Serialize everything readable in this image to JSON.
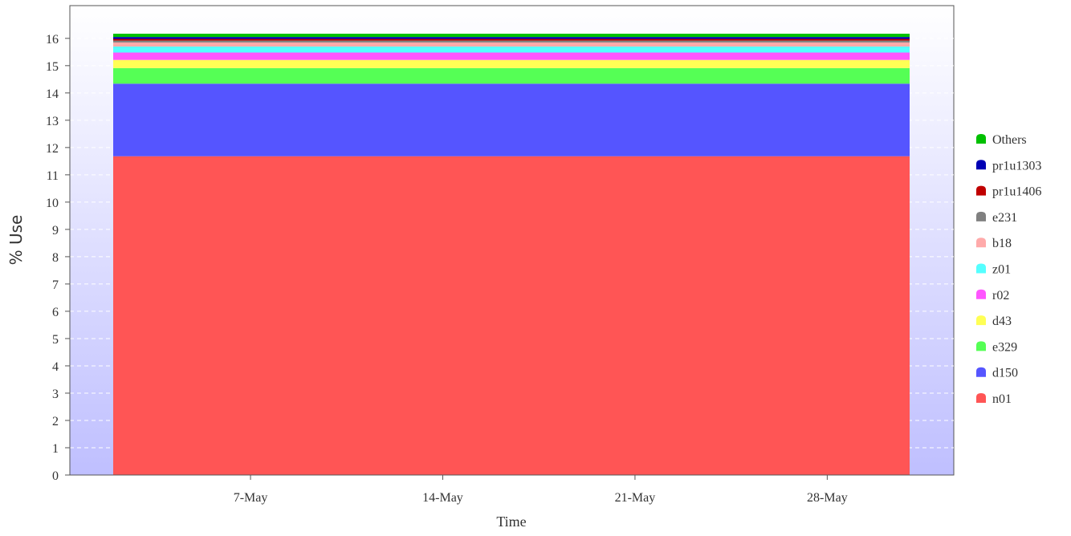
{
  "chart_data": {
    "type": "area",
    "stacked": true,
    "title": "",
    "xlabel": "Time",
    "ylabel": "% Use",
    "ylim": [
      0,
      17.2
    ],
    "yticks": [
      "0",
      "1",
      "2",
      "3",
      "4",
      "5",
      "6",
      "7",
      "8",
      "9",
      "10",
      "11",
      "12",
      "13",
      "14",
      "15",
      "16"
    ],
    "xticks": [
      "7-May",
      "14-May",
      "21-May",
      "28-May"
    ],
    "x_range": [
      "2 May",
      "31 May"
    ],
    "grid": "horizontal dashed",
    "legend_placement": "right",
    "series": [
      {
        "name": "n01",
        "value": 11.68,
        "color": "#ff5555"
      },
      {
        "name": "d150",
        "value": 2.66,
        "color": "#5555ff"
      },
      {
        "name": "e329",
        "value": 0.57,
        "color": "#55ff55"
      },
      {
        "name": "d43",
        "value": 0.3,
        "color": "#ffff55"
      },
      {
        "name": "r02",
        "value": 0.27,
        "color": "#ff55ff"
      },
      {
        "name": "z01",
        "value": 0.22,
        "color": "#55ffff"
      },
      {
        "name": "b18",
        "value": 0.15,
        "color": "#ffaaaa"
      },
      {
        "name": "e231",
        "value": 0.07,
        "color": "#808080"
      },
      {
        "name": "pr1u1406",
        "value": 0.06,
        "color": "#c00000"
      },
      {
        "name": "pr1u1303",
        "value": 0.07,
        "color": "#0000b4"
      },
      {
        "name": "Others",
        "value": 0.12,
        "color": "#00c000"
      }
    ]
  }
}
